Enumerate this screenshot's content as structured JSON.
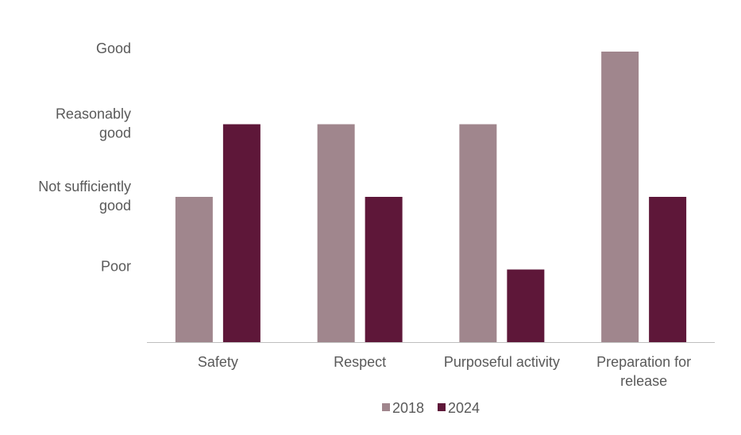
{
  "chart_data": {
    "type": "bar",
    "title": "",
    "xlabel": "",
    "ylabel": "",
    "categories": [
      [
        "Safety"
      ],
      [
        "Respect"
      ],
      [
        "Purposeful activity"
      ],
      [
        "Preparation for",
        "release"
      ]
    ],
    "y_levels": [
      {
        "value": 1,
        "label": [
          "Poor"
        ]
      },
      {
        "value": 2,
        "label": [
          "Not sufficiently",
          "good"
        ]
      },
      {
        "value": 3,
        "label": [
          "Reasonably",
          "good"
        ]
      },
      {
        "value": 4,
        "label": [
          "Good"
        ]
      }
    ],
    "ylim": [
      0,
      4
    ],
    "grid": false,
    "legend_position": "bottom",
    "series": [
      {
        "name": "2018",
        "color": "#a0868d",
        "values": [
          2,
          3,
          3,
          4
        ]
      },
      {
        "name": "2024",
        "color": "#5e1739",
        "values": [
          3,
          2,
          1,
          2
        ]
      }
    ]
  }
}
